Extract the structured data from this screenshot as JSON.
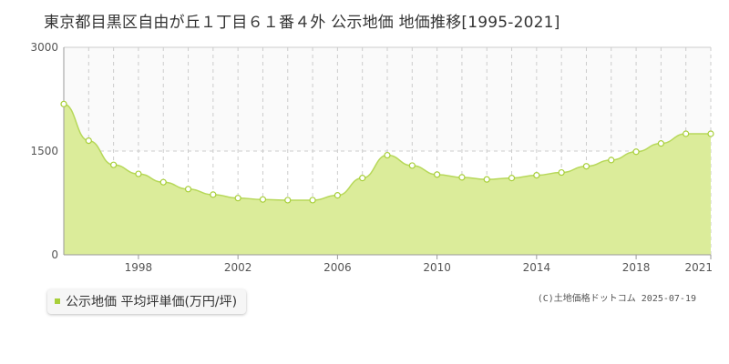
{
  "title": "東京都目黒区自由が丘１丁目６１番４外 公示地価 地価推移[1995-2021]",
  "legend_label": "公示地価 平均坪単価(万円/坪)",
  "credit": "(C)土地価格ドットコム 2025-07-19",
  "colors": {
    "fill": "#dbec9a",
    "line": "#b7d85a",
    "marker": "#a8cf3a",
    "grid": "#cccccc"
  },
  "chart_data": {
    "type": "area",
    "title": "東京都目黒区自由が丘１丁目６１番４外 公示地価 地価推移[1995-2021]",
    "xlabel": "",
    "ylabel": "",
    "xlim": [
      1995,
      2021
    ],
    "ylim": [
      0,
      3000
    ],
    "x_ticks": [
      1998,
      2002,
      2006,
      2010,
      2014,
      2018,
      2021
    ],
    "y_ticks": [
      0,
      1500,
      3000
    ],
    "grid": true,
    "legend_position": "bottom-left",
    "series": [
      {
        "name": "公示地価 平均坪単価(万円/坪)",
        "x": [
          1995,
          1996,
          1997,
          1998,
          1999,
          2000,
          2001,
          2002,
          2003,
          2004,
          2005,
          2006,
          2007,
          2008,
          2009,
          2010,
          2011,
          2012,
          2013,
          2014,
          2015,
          2016,
          2017,
          2018,
          2019,
          2020,
          2021
        ],
        "values": [
          2180,
          1650,
          1300,
          1170,
          1050,
          950,
          870,
          820,
          800,
          790,
          790,
          860,
          1110,
          1440,
          1290,
          1160,
          1120,
          1090,
          1110,
          1150,
          1190,
          1280,
          1370,
          1490,
          1610,
          1750,
          1750
        ]
      }
    ]
  }
}
